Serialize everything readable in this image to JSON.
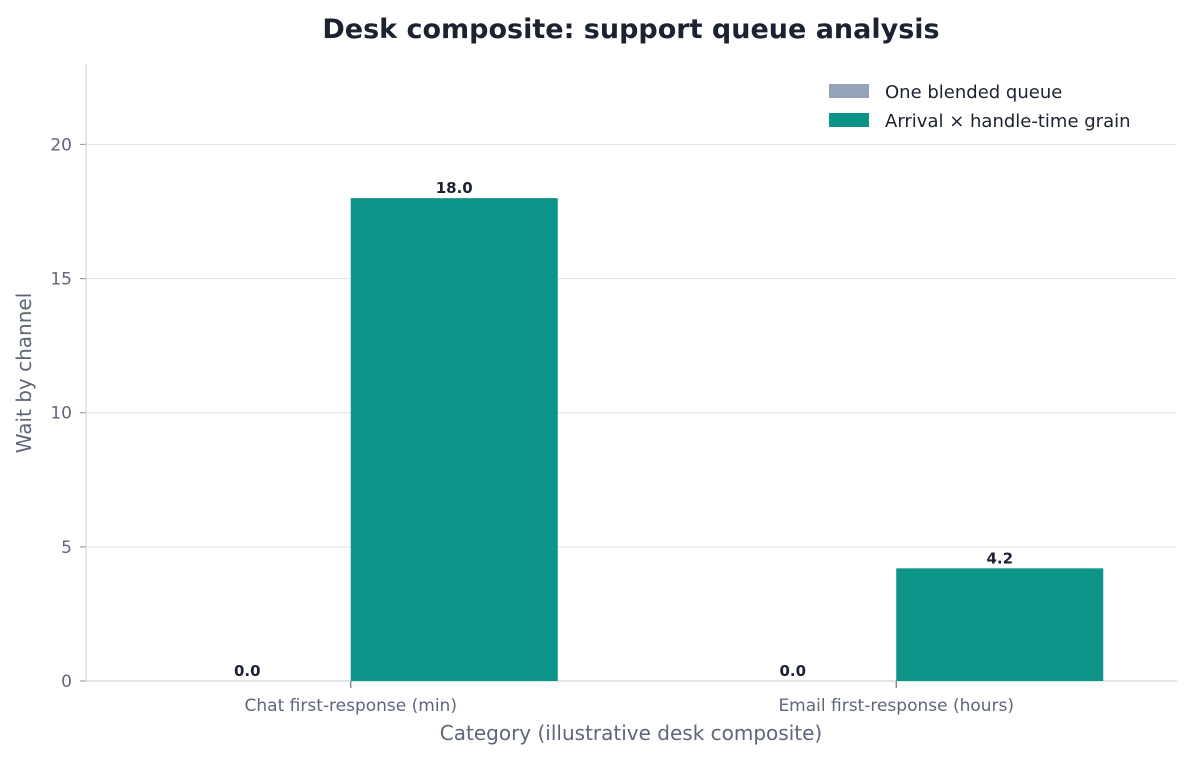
{
  "chart_data": {
    "type": "bar",
    "title": "Desk composite: support queue analysis",
    "xlabel": "Category (illustrative desk composite)",
    "ylabel": "Wait by channel",
    "categories": [
      "Chat first-response (min)",
      "Email first-response (hours)"
    ],
    "series": [
      {
        "name": "One blended queue",
        "values": [
          0.0,
          0.0
        ],
        "color": "#94a3b8"
      },
      {
        "name": "Arrival × handle-time grain",
        "values": [
          18.0,
          4.2
        ],
        "color": "#0d9488"
      }
    ],
    "yticks": [
      0,
      5,
      10,
      15,
      20
    ],
    "ylim": [
      0,
      23
    ],
    "grid": "horizontal",
    "legend": "top-right"
  }
}
